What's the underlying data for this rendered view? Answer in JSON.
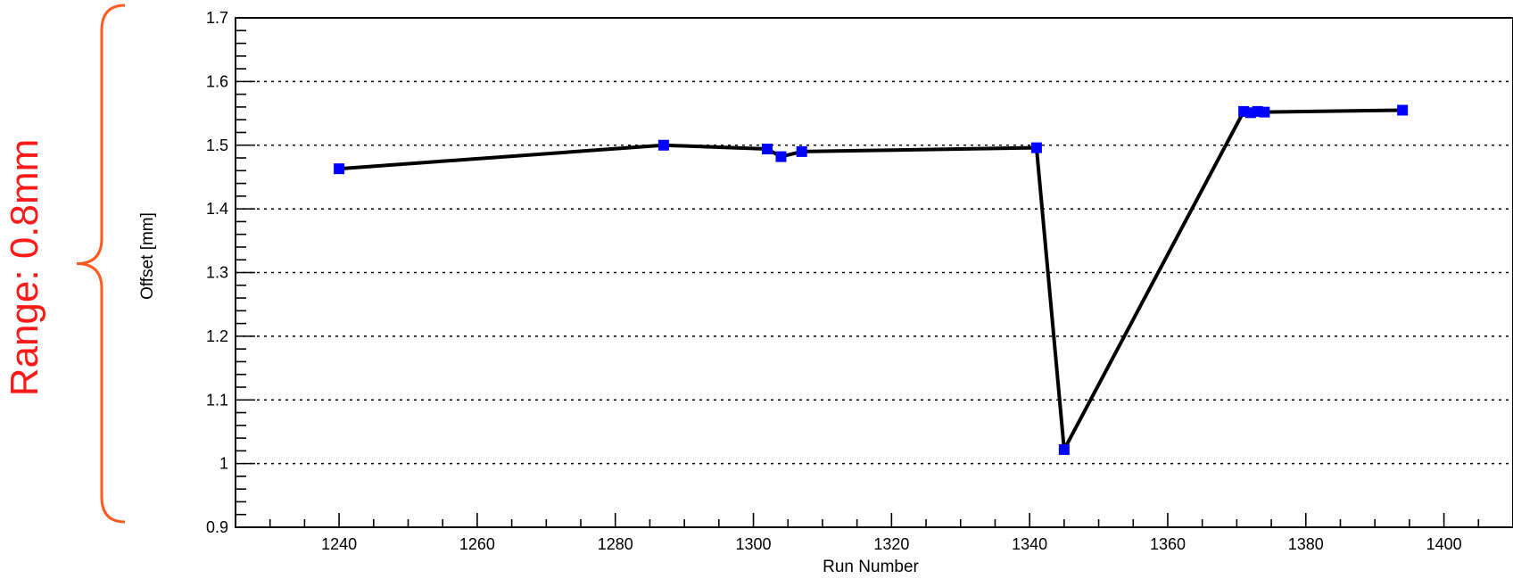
{
  "annotation": {
    "text": "Range: 0.8mm",
    "color": "#ff1a1a",
    "brace_color": "#ff5a1f",
    "brace_span": [
      0.9,
      1.7
    ]
  },
  "chart_data": {
    "type": "line",
    "title": "",
    "xlabel": "Run Number",
    "ylabel": "Offset [mm]",
    "xlim": [
      1225,
      1410
    ],
    "ylim": [
      0.9,
      1.7
    ],
    "x_ticks": [
      1240,
      1260,
      1280,
      1300,
      1320,
      1340,
      1360,
      1380,
      1400
    ],
    "y_ticks": [
      0.9,
      1,
      1.1,
      1.2,
      1.3,
      1.4,
      1.5,
      1.6,
      1.7
    ],
    "x_tick_labels": [
      "1240",
      "1260",
      "1280",
      "1300",
      "1320",
      "1340",
      "1360",
      "1380",
      "1400"
    ],
    "y_tick_labels": [
      "0.9",
      "1",
      "1.1",
      "1.2",
      "1.3",
      "1.4",
      "1.5",
      "1.6",
      "1.7"
    ],
    "grid": "horizontal dotted",
    "line_color": "#000000",
    "marker_color": "#0000ff",
    "series": [
      {
        "x": [
          1240,
          1287,
          1302,
          1304,
          1307,
          1341,
          1345,
          1371,
          1372,
          1373,
          1374,
          1394
        ],
        "y": [
          1.463,
          1.5,
          1.494,
          1.482,
          1.49,
          1.496,
          1.022,
          1.553,
          1.551,
          1.553,
          1.552,
          1.555
        ]
      }
    ]
  }
}
